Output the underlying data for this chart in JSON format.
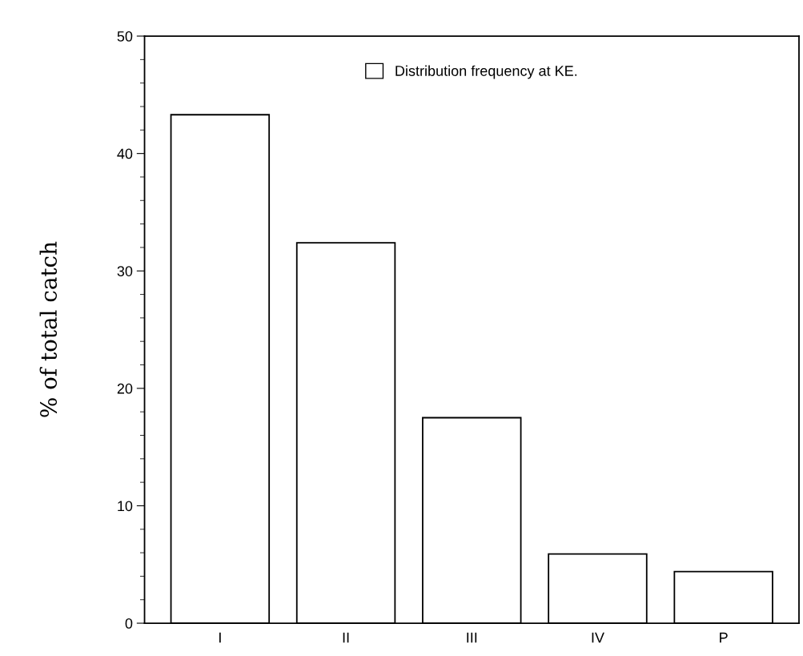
{
  "chart_data": {
    "type": "bar",
    "ylabel": "% of total catch",
    "categories": [
      "I",
      "II",
      "III",
      "IV",
      "P"
    ],
    "series": [
      {
        "name": "Distribution frequency at KE.",
        "color": "#ffffff",
        "values": [
          43.3,
          32.4,
          17.5,
          5.9,
          4.4
        ]
      }
    ],
    "ylim": [
      0,
      50
    ],
    "yticks": [
      0,
      10,
      20,
      30,
      40,
      50
    ],
    "grid": false,
    "legend": "top"
  }
}
